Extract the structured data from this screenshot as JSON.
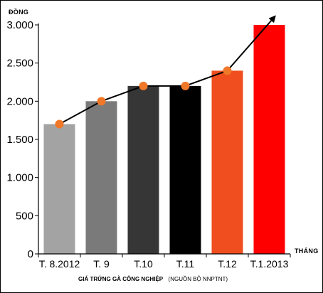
{
  "chart_data": {
    "type": "bar",
    "ylabel": "ĐỒNG",
    "xlabel": "THÁNG",
    "categories": [
      "T. 8.2012",
      "T. 9",
      "T.10",
      "T.11",
      "T.12",
      "T.1.2013"
    ],
    "values": [
      1700,
      2000,
      2200,
      2200,
      2400,
      3000
    ],
    "bar_colors": [
      "#a3a3a3",
      "#7a7a7a",
      "#363636",
      "#000000",
      "#f04e1e",
      "#ff0000"
    ],
    "trend_line": {
      "values": [
        1700,
        2000,
        2200,
        2200,
        2400
      ],
      "marker_color": "#f07828",
      "line_color": "#000000",
      "arrow_to_last_bar": true
    },
    "yticks": [
      0,
      500,
      1000,
      1500,
      2000,
      2500,
      3000
    ],
    "ytick_labels": [
      "0",
      "500",
      "1.000",
      "1.500",
      "2.000",
      "2.500",
      "3.000"
    ],
    "ylim": [
      0,
      3000
    ],
    "grid": false,
    "caption": {
      "main": "GIÁ TRỨNG GÀ CÔNG NGHIỆP",
      "source": "(NGUỒN BỘ NNPTNT)"
    }
  }
}
